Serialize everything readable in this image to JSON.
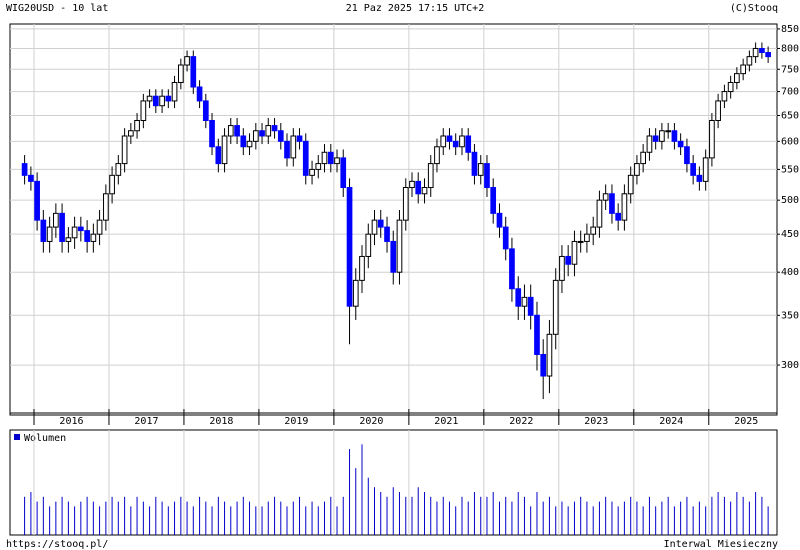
{
  "chart_data": {
    "type": "candlestick",
    "title": "WIG20USD - 10 lat",
    "subtitle": "21 Paz 2025 17:15 UTC+2",
    "credit": "(C)Stooq",
    "footer_left": "https://stooq.pl/",
    "footer_right": "Interwal Miesieczny",
    "volume_legend": "Wolumen",
    "log_scale": true,
    "grid": true,
    "up_color": "#ffffff",
    "down_color": "#0000ff",
    "volume_color": "#0000cc",
    "xlim": [
      2015.68,
      2025.91
    ],
    "xgrid": [
      2016,
      2017,
      2018,
      2019,
      2020,
      2021,
      2022,
      2023,
      2024,
      2025
    ],
    "xticks": [
      {
        "value": 2016.5,
        "label": "2016"
      },
      {
        "value": 2017.5,
        "label": "2017"
      },
      {
        "value": 2018.5,
        "label": "2018"
      },
      {
        "value": 2019.5,
        "label": "2019"
      },
      {
        "value": 2020.5,
        "label": "2020"
      },
      {
        "value": 2021.5,
        "label": "2021"
      },
      {
        "value": 2022.5,
        "label": "2022"
      },
      {
        "value": 2023.5,
        "label": "2023"
      },
      {
        "value": 2024.5,
        "label": "2024"
      },
      {
        "value": 2025.5,
        "label": "2025"
      }
    ],
    "ylim": [
      257,
      863
    ],
    "yticks": [
      300,
      350,
      400,
      450,
      500,
      550,
      600,
      650,
      700,
      750,
      800,
      850
    ],
    "volume_ylim": [
      0,
      110
    ],
    "x": [
      2015.833,
      2015.917,
      2016,
      2016.083,
      2016.167,
      2016.25,
      2016.333,
      2016.417,
      2016.5,
      2016.583,
      2016.667,
      2016.75,
      2016.833,
      2016.917,
      2017,
      2017.083,
      2017.167,
      2017.25,
      2017.333,
      2017.417,
      2017.5,
      2017.583,
      2017.667,
      2017.75,
      2017.833,
      2017.917,
      2018,
      2018.083,
      2018.167,
      2018.25,
      2018.333,
      2018.417,
      2018.5,
      2018.583,
      2018.667,
      2018.75,
      2018.833,
      2018.917,
      2019,
      2019.083,
      2019.167,
      2019.25,
      2019.333,
      2019.417,
      2019.5,
      2019.583,
      2019.667,
      2019.75,
      2019.833,
      2019.917,
      2020,
      2020.083,
      2020.167,
      2020.25,
      2020.333,
      2020.417,
      2020.5,
      2020.583,
      2020.667,
      2020.75,
      2020.833,
      2020.917,
      2021,
      2021.083,
      2021.167,
      2021.25,
      2021.333,
      2021.417,
      2021.5,
      2021.583,
      2021.667,
      2021.75,
      2021.833,
      2021.917,
      2022,
      2022.083,
      2022.167,
      2022.25,
      2022.333,
      2022.417,
      2022.5,
      2022.583,
      2022.667,
      2022.75,
      2022.833,
      2022.917,
      2023,
      2023.083,
      2023.167,
      2023.25,
      2023.333,
      2023.417,
      2023.5,
      2023.583,
      2023.667,
      2023.75,
      2023.833,
      2023.917,
      2024,
      2024.083,
      2024.167,
      2024.25,
      2024.333,
      2024.417,
      2024.5,
      2024.583,
      2024.667,
      2024.75,
      2024.833,
      2024.917,
      2025,
      2025.083,
      2025.167,
      2025.25,
      2025.333,
      2025.417,
      2025.5,
      2025.583,
      2025.667,
      2025.75
    ],
    "open": [
      560,
      540,
      530,
      470,
      440,
      460,
      480,
      440,
      445,
      460,
      455,
      440,
      450,
      470,
      510,
      540,
      560,
      610,
      620,
      640,
      680,
      690,
      670,
      690,
      680,
      720,
      760,
      780,
      710,
      680,
      640,
      590,
      560,
      610,
      630,
      610,
      590,
      600,
      620,
      610,
      630,
      620,
      600,
      570,
      610,
      600,
      540,
      550,
      560,
      580,
      560,
      570,
      520,
      360,
      390,
      420,
      450,
      470,
      460,
      440,
      400,
      470,
      520,
      530,
      510,
      520,
      560,
      590,
      610,
      600,
      590,
      610,
      580,
      540,
      560,
      520,
      480,
      460,
      430,
      380,
      360,
      370,
      350,
      310,
      290,
      330,
      390,
      420,
      410,
      440,
      440,
      450,
      460,
      500,
      510,
      480,
      470,
      510,
      540,
      560,
      580,
      610,
      600,
      620,
      620,
      600,
      590,
      560,
      540,
      530,
      570,
      640,
      680,
      700,
      720,
      740,
      760,
      780,
      800,
      790
    ],
    "high": [
      575,
      555,
      545,
      485,
      475,
      495,
      495,
      460,
      475,
      475,
      470,
      465,
      485,
      525,
      555,
      575,
      625,
      635,
      655,
      695,
      705,
      705,
      705,
      705,
      735,
      775,
      795,
      795,
      725,
      695,
      655,
      605,
      625,
      645,
      645,
      625,
      615,
      635,
      635,
      645,
      645,
      635,
      615,
      625,
      625,
      615,
      565,
      575,
      595,
      595,
      585,
      585,
      535,
      405,
      435,
      465,
      485,
      485,
      475,
      455,
      485,
      535,
      545,
      545,
      535,
      575,
      605,
      625,
      625,
      615,
      625,
      625,
      595,
      575,
      575,
      535,
      495,
      475,
      445,
      395,
      385,
      385,
      365,
      325,
      345,
      405,
      435,
      435,
      455,
      455,
      465,
      475,
      515,
      525,
      525,
      495,
      525,
      555,
      575,
      595,
      625,
      625,
      635,
      635,
      635,
      615,
      605,
      575,
      555,
      585,
      655,
      695,
      715,
      735,
      755,
      775,
      795,
      815,
      815,
      805
    ],
    "low": [
      525,
      515,
      455,
      425,
      425,
      445,
      425,
      425,
      430,
      440,
      425,
      425,
      435,
      455,
      495,
      525,
      545,
      595,
      605,
      625,
      665,
      655,
      655,
      665,
      665,
      705,
      745,
      695,
      665,
      625,
      575,
      545,
      545,
      595,
      595,
      575,
      575,
      585,
      595,
      595,
      605,
      585,
      555,
      555,
      585,
      525,
      525,
      535,
      545,
      545,
      545,
      505,
      320,
      345,
      375,
      405,
      435,
      445,
      425,
      385,
      385,
      455,
      505,
      495,
      495,
      505,
      545,
      575,
      585,
      575,
      575,
      565,
      525,
      525,
      505,
      465,
      445,
      415,
      365,
      345,
      345,
      335,
      295,
      270,
      275,
      315,
      375,
      395,
      395,
      425,
      425,
      435,
      445,
      485,
      465,
      455,
      455,
      495,
      525,
      545,
      565,
      585,
      585,
      605,
      585,
      575,
      545,
      525,
      515,
      515,
      555,
      625,
      665,
      685,
      705,
      725,
      745,
      765,
      775,
      765
    ],
    "close": [
      540,
      530,
      470,
      440,
      460,
      480,
      440,
      445,
      460,
      455,
      440,
      450,
      470,
      510,
      540,
      560,
      610,
      620,
      640,
      680,
      690,
      670,
      690,
      680,
      720,
      760,
      780,
      710,
      680,
      640,
      590,
      560,
      610,
      630,
      610,
      590,
      600,
      620,
      610,
      630,
      620,
      600,
      570,
      610,
      600,
      540,
      550,
      560,
      580,
      560,
      570,
      520,
      360,
      390,
      420,
      450,
      470,
      460,
      440,
      400,
      470,
      520,
      530,
      510,
      520,
      560,
      590,
      610,
      600,
      590,
      610,
      580,
      540,
      560,
      520,
      480,
      460,
      430,
      380,
      360,
      370,
      350,
      310,
      290,
      330,
      390,
      420,
      410,
      440,
      440,
      450,
      460,
      500,
      510,
      480,
      470,
      510,
      540,
      560,
      580,
      610,
      600,
      620,
      620,
      600,
      590,
      560,
      540,
      530,
      570,
      640,
      680,
      700,
      720,
      740,
      760,
      780,
      800,
      790,
      780
    ],
    "volume": [
      40,
      45,
      35,
      40,
      30,
      35,
      40,
      35,
      30,
      35,
      40,
      35,
      30,
      35,
      40,
      35,
      40,
      30,
      40,
      35,
      30,
      40,
      35,
      30,
      35,
      40,
      35,
      30,
      40,
      35,
      30,
      40,
      35,
      30,
      35,
      40,
      35,
      30,
      30,
      35,
      40,
      35,
      30,
      35,
      40,
      30,
      35,
      30,
      35,
      40,
      30,
      40,
      90,
      70,
      95,
      60,
      50,
      45,
      40,
      50,
      45,
      40,
      40,
      50,
      45,
      40,
      35,
      40,
      35,
      30,
      40,
      35,
      45,
      40,
      40,
      45,
      35,
      40,
      35,
      45,
      40,
      30,
      45,
      35,
      40,
      30,
      35,
      30,
      35,
      40,
      35,
      30,
      35,
      40,
      35,
      30,
      35,
      40,
      35,
      30,
      40,
      30,
      35,
      40,
      30,
      35,
      40,
      30,
      35,
      30,
      40,
      45,
      40,
      35,
      45,
      40,
      35,
      45,
      40,
      30
    ]
  }
}
